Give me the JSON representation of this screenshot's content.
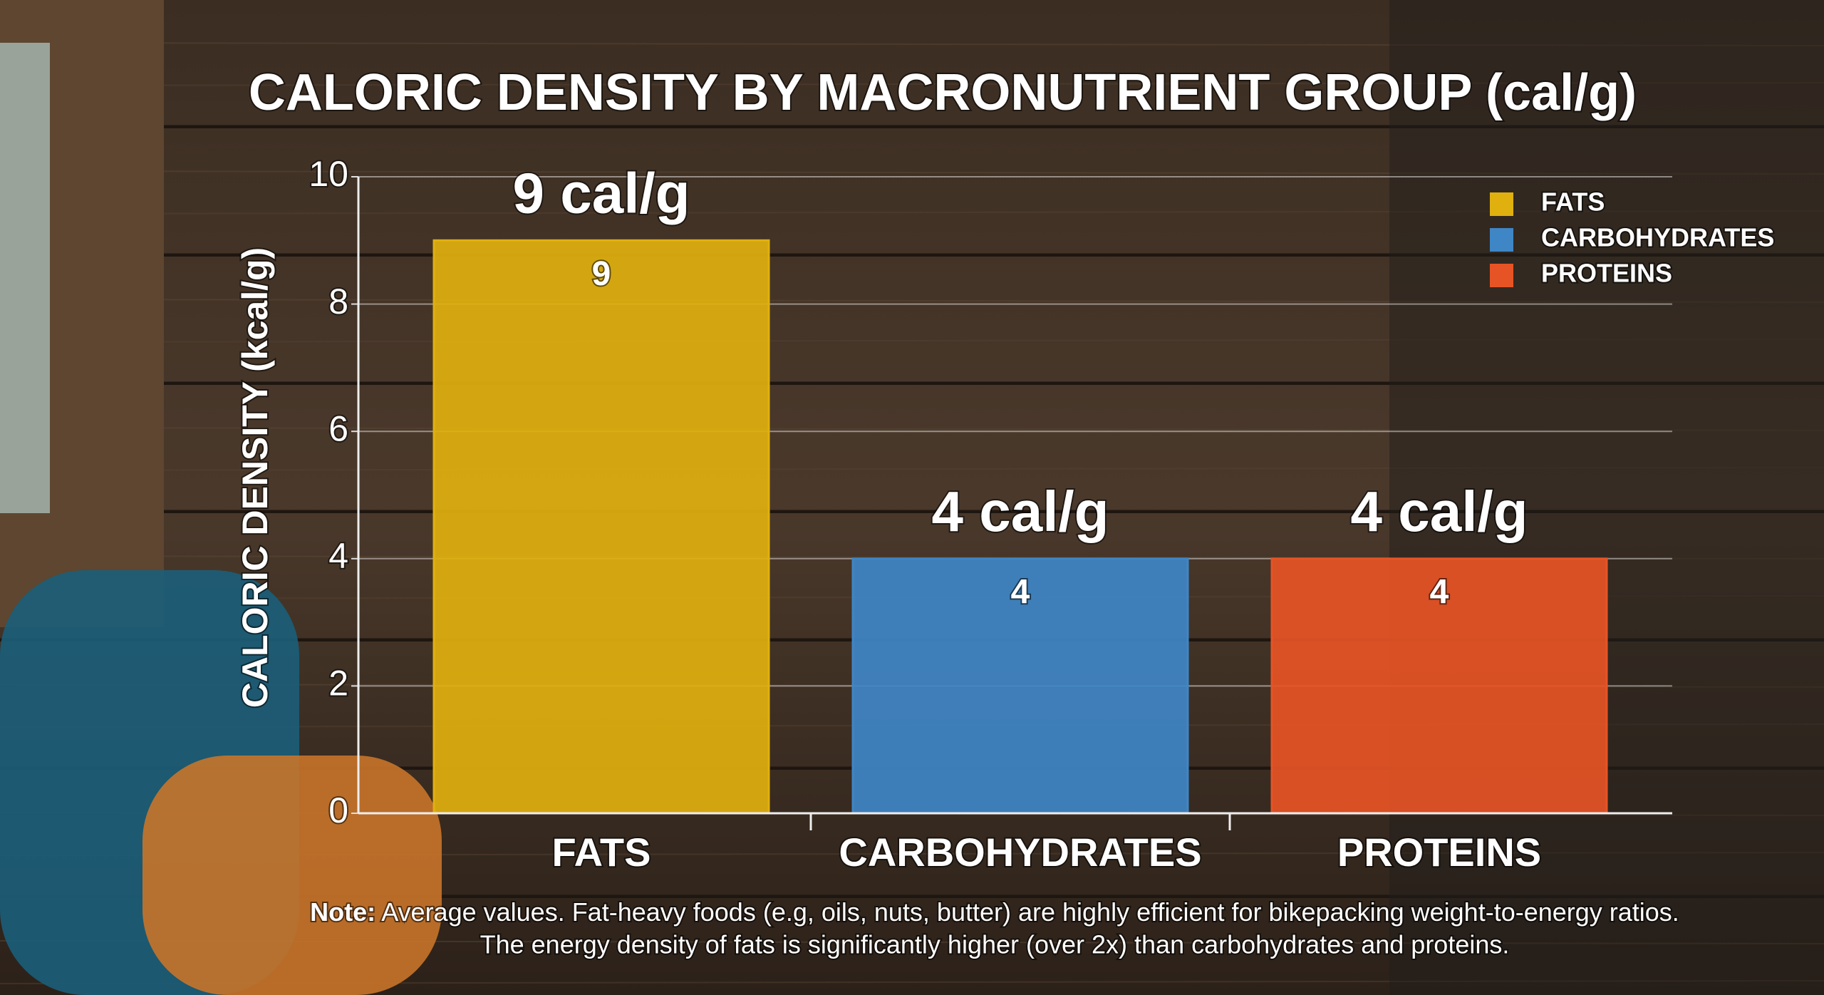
{
  "chart_data": {
    "type": "bar",
    "title": "CALORIC DENSITY BY MACRONUTRIENT GROUP (cal/g)",
    "y_label": "CALORIC DENSITY (kcal/g)",
    "categories": [
      "FATS",
      "CARBOHYDRATES",
      "PROTEINS"
    ],
    "values": [
      9,
      4,
      4
    ],
    "value_labels": [
      "9 cal/g",
      "4 cal/g",
      "4 cal/g"
    ],
    "colors": [
      "#e0b00f",
      "#3f86c6",
      "#e65425"
    ],
    "ylim": [
      0,
      10
    ],
    "yticks": [
      0,
      2,
      4,
      6,
      8,
      10
    ],
    "grid": true,
    "legend": "top-right",
    "note": {
      "label": "Note:",
      "lines": [
        "Average values. Fat-heavy foods (e.g, oils, nuts, butter) are highly efficient for bikepacking weight-to-energy ratios.",
        "The energy density of fats is significantly higher (over 2x) than carbohydrates and proteins."
      ]
    }
  }
}
